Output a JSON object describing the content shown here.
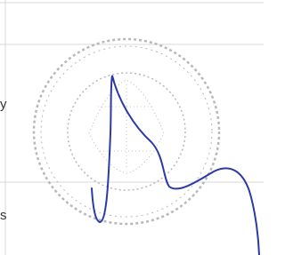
{
  "fragments": [
    "y",
    "s"
  ]
}
